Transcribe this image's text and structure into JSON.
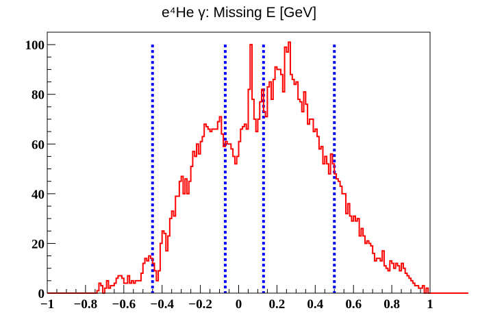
{
  "chart_data": {
    "type": "histogram",
    "title": "e⁴He γ: Missing E [GeV]",
    "xlabel": "",
    "ylabel": "",
    "xlim": [
      -1,
      1
    ],
    "ylim": [
      0,
      105
    ],
    "x_ticks": [
      -1,
      -0.8,
      -0.6,
      -0.4,
      -0.2,
      0,
      0.2,
      0.4,
      0.6,
      0.8,
      1
    ],
    "x_tick_labels": [
      "−1",
      "−0.8",
      "−0.6",
      "−0.4",
      "−0.2",
      "0",
      "0.2",
      "0.4",
      "0.6",
      "0.8",
      "1"
    ],
    "y_ticks": [
      0,
      20,
      40,
      60,
      80,
      100
    ],
    "y_tick_labels": [
      "0",
      "20",
      "40",
      "60",
      "80",
      "100"
    ],
    "grid": false,
    "legend": "none",
    "bin_width": 0.01,
    "series": [
      {
        "color": "#ff0000",
        "style": "step",
        "x_start": -1.0,
        "values": [
          0,
          0,
          0,
          0,
          0,
          0,
          0,
          0,
          0,
          0,
          0,
          0,
          0,
          0,
          0,
          0,
          0,
          0,
          0,
          0,
          0,
          0,
          0,
          0,
          0,
          0,
          1,
          4,
          3,
          0,
          2,
          5,
          2,
          3,
          3,
          4,
          6,
          7,
          7,
          6,
          4,
          4,
          7,
          4,
          5,
          4,
          5,
          5,
          5,
          8,
          12,
          14,
          13,
          15,
          14,
          12,
          9,
          5,
          9,
          20,
          25,
          24,
          17,
          23,
          30,
          33,
          31,
          39,
          39,
          45,
          47,
          40,
          46,
          40,
          45,
          51,
          57,
          55,
          60,
          56,
          61,
          63,
          68,
          67,
          66,
          65,
          66,
          66,
          66,
          69,
          71,
          64,
          59,
          61,
          60,
          60,
          58,
          55,
          52,
          55,
          61,
          66,
          67,
          68,
          66,
          82,
          100,
          78,
          70,
          65,
          70,
          77,
          82,
          73,
          71,
          83,
          85,
          78,
          86,
          91,
          90,
          90,
          88,
          81,
          99,
          97,
          101,
          88,
          86,
          84,
          85,
          78,
          77,
          73,
          81,
          76,
          68,
          70,
          70,
          65,
          66,
          63,
          58,
          59,
          52,
          55,
          52,
          48,
          56,
          52,
          48,
          46,
          45,
          43,
          40,
          40,
          32,
          36,
          31,
          29,
          31,
          29,
          30,
          23,
          26,
          23,
          20,
          21,
          20,
          19,
          16,
          13,
          14,
          14,
          13,
          17,
          11,
          10,
          9,
          13,
          12,
          10,
          12,
          11,
          9,
          12,
          10,
          8,
          7,
          6,
          5,
          4,
          3,
          3,
          2,
          2,
          3,
          0,
          2,
          0,
          0,
          0,
          0,
          0,
          0,
          0,
          0,
          0,
          0,
          0,
          0,
          0,
          0,
          0,
          0,
          0,
          0,
          0,
          0,
          0
        ]
      }
    ],
    "vertical_lines": [
      {
        "x": -0.45,
        "color": "#0000ff",
        "style": "dotted"
      },
      {
        "x": -0.07,
        "color": "#0000ff",
        "style": "dotted"
      },
      {
        "x": 0.13,
        "color": "#0000ff",
        "style": "dotted"
      },
      {
        "x": 0.5,
        "color": "#0000ff",
        "style": "dotted"
      }
    ]
  }
}
